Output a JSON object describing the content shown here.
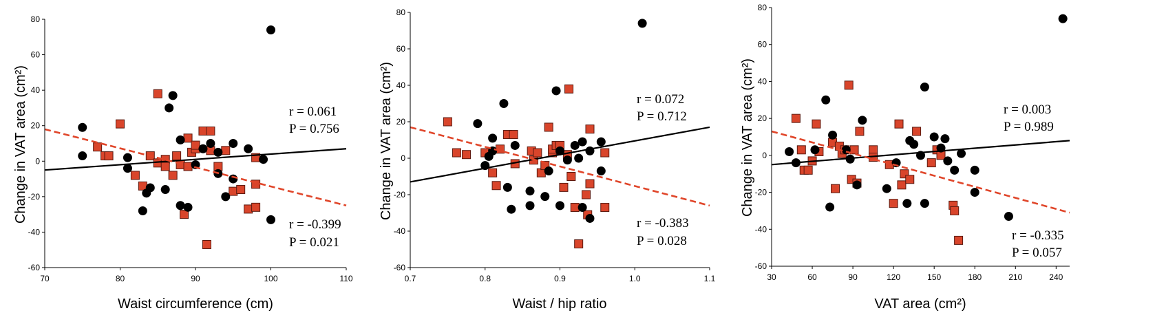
{
  "colors": {
    "series_a": "#000000",
    "series_b": "#d9452b",
    "series_b_stroke": "#5a1a10",
    "series_b_line": "#e0462a"
  },
  "chart_data": [
    {
      "type": "scatter",
      "xlabel": "Waist circumference (cm)",
      "ylabel": "Change in VAT area (cm²)",
      "xlim": [
        70,
        110
      ],
      "ylim": [
        -60,
        80
      ],
      "xticks": [
        70,
        80,
        90,
        100,
        110
      ],
      "yticks": [
        -60,
        -40,
        -20,
        0,
        20,
        40,
        60,
        80
      ],
      "grid": false,
      "series": [
        {
          "marker": "circle",
          "color": "#000000",
          "line_style": "solid",
          "points": [
            [
              75,
              19
            ],
            [
              75,
              3
            ],
            [
              81,
              2
            ],
            [
              81,
              -4
            ],
            [
              83,
              -28
            ],
            [
              83.5,
              -18
            ],
            [
              84,
              -15
            ],
            [
              86,
              -16
            ],
            [
              86.5,
              30
            ],
            [
              87,
              37
            ],
            [
              88,
              12
            ],
            [
              88,
              -25
            ],
            [
              89,
              -26
            ],
            [
              90,
              -2
            ],
            [
              91,
              7
            ],
            [
              92,
              10
            ],
            [
              93,
              5
            ],
            [
              93,
              -7
            ],
            [
              94,
              -20
            ],
            [
              95,
              -10
            ],
            [
              95,
              10
            ],
            [
              97,
              7
            ],
            [
              99,
              1
            ],
            [
              100,
              -33
            ],
            [
              100,
              74
            ]
          ],
          "trend": [
            [
              70,
              -5
            ],
            [
              110,
              7
            ]
          ],
          "annotations": [
            "r = 0.061",
            "P = 0.756"
          ]
        },
        {
          "marker": "square",
          "color": "#d9452b",
          "line_style": "dashed",
          "points": [
            [
              80,
              21
            ],
            [
              77,
              8
            ],
            [
              78,
              3
            ],
            [
              78.5,
              3
            ],
            [
              82,
              -8
            ],
            [
              83,
              -14
            ],
            [
              84,
              3
            ],
            [
              85,
              38
            ],
            [
              85,
              -1
            ],
            [
              86,
              1
            ],
            [
              86,
              -3
            ],
            [
              87,
              -8
            ],
            [
              87.5,
              3
            ],
            [
              88,
              -2
            ],
            [
              88.5,
              -30
            ],
            [
              89,
              -3
            ],
            [
              89,
              13
            ],
            [
              89.5,
              5
            ],
            [
              90,
              7
            ],
            [
              90,
              9
            ],
            [
              91,
              17
            ],
            [
              91.5,
              -47
            ],
            [
              92,
              17
            ],
            [
              92,
              6
            ],
            [
              93,
              -3
            ],
            [
              94,
              6
            ],
            [
              95,
              -17
            ],
            [
              96,
              -16
            ],
            [
              97,
              -27
            ],
            [
              98,
              -26
            ],
            [
              98,
              -13
            ],
            [
              98,
              2
            ]
          ],
          "trend": [
            [
              70,
              18
            ],
            [
              110,
              -25
            ]
          ],
          "annotations": [
            "r = -0.399",
            "P = 0.021"
          ]
        }
      ]
    },
    {
      "type": "scatter",
      "xlabel": "Waist / hip ratio",
      "ylabel": "Change in VAT area (cm²)",
      "xlim": [
        0.7,
        1.1
      ],
      "ylim": [
        -60,
        80
      ],
      "xticks": [
        "0.7",
        "0.8",
        "0.9",
        "1.0",
        "1.1"
      ],
      "yticks": [
        -60,
        -40,
        -20,
        0,
        20,
        40,
        60,
        80
      ],
      "grid": false,
      "series": [
        {
          "marker": "circle",
          "color": "#000000",
          "line_style": "solid",
          "points": [
            [
              0.79,
              19
            ],
            [
              0.8,
              -4
            ],
            [
              0.805,
              1
            ],
            [
              0.81,
              11
            ],
            [
              0.81,
              4
            ],
            [
              0.825,
              30
            ],
            [
              0.83,
              -16
            ],
            [
              0.835,
              -28
            ],
            [
              0.84,
              7
            ],
            [
              0.86,
              -18
            ],
            [
              0.86,
              -26
            ],
            [
              0.88,
              -21
            ],
            [
              0.885,
              -7
            ],
            [
              0.895,
              37
            ],
            [
              0.9,
              -26
            ],
            [
              0.9,
              4
            ],
            [
              0.91,
              -1
            ],
            [
              0.92,
              7
            ],
            [
              0.925,
              0
            ],
            [
              0.93,
              9
            ],
            [
              0.93,
              -27
            ],
            [
              0.94,
              -33
            ],
            [
              0.94,
              4
            ],
            [
              0.955,
              9
            ],
            [
              0.955,
              -7
            ],
            [
              1.01,
              74
            ]
          ],
          "trend": [
            [
              0.7,
              -13
            ],
            [
              1.1,
              17
            ]
          ],
          "annotations": [
            "r = 0.072",
            "P = 0.712"
          ]
        },
        {
          "marker": "square",
          "color": "#d9452b",
          "line_style": "dashed",
          "points": [
            [
              0.75,
              20
            ],
            [
              0.762,
              3
            ],
            [
              0.775,
              2
            ],
            [
              0.8,
              3
            ],
            [
              0.81,
              -8
            ],
            [
              0.815,
              -15
            ],
            [
              0.82,
              5
            ],
            [
              0.83,
              13
            ],
            [
              0.838,
              13
            ],
            [
              0.84,
              -3
            ],
            [
              0.862,
              4
            ],
            [
              0.865,
              -1
            ],
            [
              0.87,
              3
            ],
            [
              0.875,
              -8
            ],
            [
              0.88,
              -4
            ],
            [
              0.885,
              17
            ],
            [
              0.89,
              3
            ],
            [
              0.89,
              5
            ],
            [
              0.895,
              7
            ],
            [
              0.9,
              7
            ],
            [
              0.905,
              -16
            ],
            [
              0.91,
              2
            ],
            [
              0.912,
              38
            ],
            [
              0.915,
              -10
            ],
            [
              0.92,
              -27
            ],
            [
              0.925,
              -47
            ],
            [
              0.935,
              -20
            ],
            [
              0.937,
              -31
            ],
            [
              0.94,
              -14
            ],
            [
              0.94,
              16
            ],
            [
              0.96,
              -27
            ],
            [
              0.96,
              3
            ]
          ],
          "trend": [
            [
              0.7,
              17
            ],
            [
              1.1,
              -26
            ]
          ],
          "annotations": [
            "r = -0.383",
            "P = 0.028"
          ]
        }
      ]
    },
    {
      "type": "scatter",
      "xlabel": "VAT area (cm²)",
      "ylabel": "Change in VAT area (cm²)",
      "xlim": [
        30,
        250
      ],
      "ylim": [
        -60,
        80
      ],
      "xticks": [
        30,
        60,
        90,
        120,
        150,
        180,
        210,
        240
      ],
      "yticks": [
        -60,
        -40,
        -20,
        0,
        20,
        40,
        60,
        80
      ],
      "grid": false,
      "series": [
        {
          "marker": "circle",
          "color": "#000000",
          "line_style": "solid",
          "points": [
            [
              43,
              2
            ],
            [
              48,
              -4
            ],
            [
              62,
              3
            ],
            [
              70,
              30
            ],
            [
              73,
              -28
            ],
            [
              75,
              11
            ],
            [
              85,
              3
            ],
            [
              88,
              -2
            ],
            [
              93,
              -16
            ],
            [
              97,
              19
            ],
            [
              115,
              -18
            ],
            [
              122,
              -4
            ],
            [
              130,
              -26
            ],
            [
              132,
              8
            ],
            [
              135,
              6
            ],
            [
              140,
              0
            ],
            [
              143,
              -26
            ],
            [
              143,
              37
            ],
            [
              150,
              10
            ],
            [
              155,
              4
            ],
            [
              158,
              9
            ],
            [
              160,
              -3
            ],
            [
              165,
              -8
            ],
            [
              170,
              1
            ],
            [
              180,
              -8
            ],
            [
              180,
              -20
            ],
            [
              205,
              -33
            ],
            [
              245,
              74
            ]
          ],
          "trend": [
            [
              30,
              -5
            ],
            [
              250,
              8
            ]
          ],
          "annotations": [
            "r = 0.003",
            "P = 0.989"
          ]
        },
        {
          "marker": "square",
          "color": "#d9452b",
          "line_style": "dashed",
          "points": [
            [
              48,
              20
            ],
            [
              52,
              3
            ],
            [
              54,
              -8
            ],
            [
              57,
              -8
            ],
            [
              60,
              -3
            ],
            [
              63,
              17
            ],
            [
              65,
              2
            ],
            [
              75,
              7
            ],
            [
              77,
              -18
            ],
            [
              80,
              5
            ],
            [
              82,
              1
            ],
            [
              84,
              3
            ],
            [
              87,
              38
            ],
            [
              89,
              -13
            ],
            [
              91,
              3
            ],
            [
              93,
              -15
            ],
            [
              95,
              13
            ],
            [
              105,
              3
            ],
            [
              105,
              -1
            ],
            [
              117,
              -5
            ],
            [
              120,
              -26
            ],
            [
              124,
              17
            ],
            [
              126,
              -16
            ],
            [
              128,
              -10
            ],
            [
              132,
              -13
            ],
            [
              137,
              13
            ],
            [
              148,
              -4
            ],
            [
              152,
              3
            ],
            [
              155,
              0
            ],
            [
              164,
              -27
            ],
            [
              165,
              -30
            ],
            [
              168,
              -46
            ]
          ],
          "trend": [
            [
              30,
              13
            ],
            [
              250,
              -31
            ]
          ],
          "annotations": [
            "r = -0.335",
            "P = 0.057"
          ]
        }
      ]
    }
  ]
}
